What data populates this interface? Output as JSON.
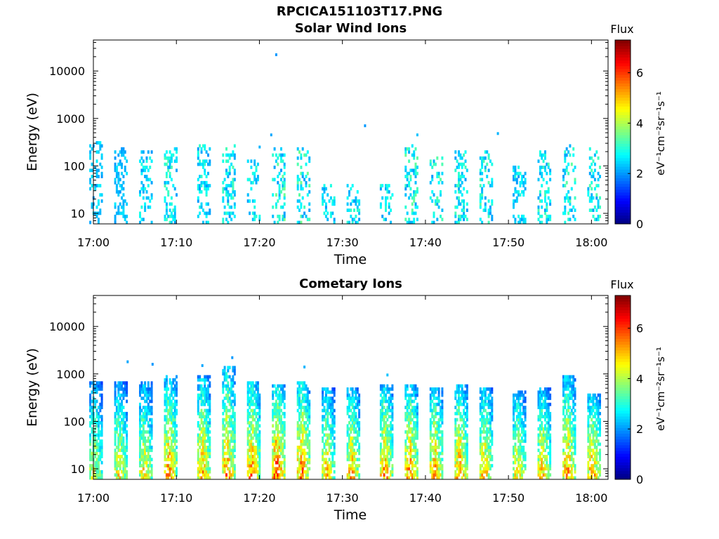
{
  "figure_title": "RPCICA151103T17.PNG",
  "chart_data": [
    {
      "type": "heatmap",
      "title": "Solar Wind Ions",
      "xlabel": "Time",
      "ylabel": "Energy (eV)",
      "xlim": [
        "17:00",
        "18:02"
      ],
      "ylim": [
        6,
        45000
      ],
      "yscale": "log",
      "x_ticks": [
        "17:00",
        "17:10",
        "17:20",
        "17:30",
        "17:40",
        "17:50",
        "18:00"
      ],
      "y_ticks": [
        "10",
        "100",
        "1000",
        "10000"
      ],
      "colorbar": {
        "title": "Flux",
        "label": "eV⁻¹cm⁻²sr⁻¹s⁻¹",
        "range": [
          0,
          7.3
        ],
        "ticks": [
          "0",
          "2",
          "4",
          "6"
        ]
      },
      "bursts": [
        {
          "t": "17:00",
          "emax": 350,
          "peak": 2.7
        },
        {
          "t": "17:03",
          "emax": 250,
          "peak": 2.6
        },
        {
          "t": "17:06",
          "emax": 220,
          "peak": 3.0
        },
        {
          "t": "17:09",
          "emax": 250,
          "peak": 3.3
        },
        {
          "t": "17:13",
          "emax": 300,
          "peak": 3.2
        },
        {
          "t": "17:16",
          "emax": 300,
          "peak": 3.3
        },
        {
          "t": "17:19",
          "emax": 150,
          "peak": 3.1
        },
        {
          "t": "17:22",
          "emax": 230,
          "peak": 3.6
        },
        {
          "t": "17:25",
          "emax": 250,
          "peak": 3.6
        },
        {
          "t": "17:28",
          "emax": 40,
          "peak": 3.0
        },
        {
          "t": "17:31",
          "emax": 40,
          "peak": 3.1
        },
        {
          "t": "17:35",
          "emax": 40,
          "peak": 3.2
        },
        {
          "t": "17:38",
          "emax": 300,
          "peak": 3.5
        },
        {
          "t": "17:41",
          "emax": 150,
          "peak": 3.4
        },
        {
          "t": "17:44",
          "emax": 200,
          "peak": 3.3
        },
        {
          "t": "17:47",
          "emax": 200,
          "peak": 3.4
        },
        {
          "t": "17:51",
          "emax": 100,
          "peak": 3.0
        },
        {
          "t": "17:54",
          "emax": 200,
          "peak": 3.3
        },
        {
          "t": "17:57",
          "emax": 300,
          "peak": 3.5
        },
        {
          "t": "18:00",
          "emax": 250,
          "peak": 3.4
        }
      ],
      "isolated_points": [
        {
          "t": "17:21.9",
          "e": 22000,
          "v": 2.0
        },
        {
          "t": "17:32.6",
          "e": 700,
          "v": 2.0
        },
        {
          "t": "17:48.6",
          "e": 480,
          "v": 2.2
        },
        {
          "t": "17:38.9",
          "e": 450,
          "v": 2.3
        },
        {
          "t": "17:21.3",
          "e": 450,
          "v": 2.1
        },
        {
          "t": "17:19.9",
          "e": 250,
          "v": 2.2
        }
      ]
    },
    {
      "type": "heatmap",
      "title": "Cometary Ions",
      "xlabel": "Time",
      "ylabel": "Energy (eV)",
      "xlim": [
        "17:00",
        "18:02"
      ],
      "ylim": [
        6,
        45000
      ],
      "yscale": "log",
      "x_ticks": [
        "17:00",
        "17:10",
        "17:20",
        "17:30",
        "17:40",
        "17:50",
        "18:00"
      ],
      "y_ticks": [
        "10",
        "100",
        "1000",
        "10000"
      ],
      "colorbar": {
        "title": "Flux",
        "label": "eV⁻¹cm⁻²sr⁻¹s⁻¹",
        "range": [
          0,
          7.3
        ],
        "ticks": [
          "0",
          "2",
          "4",
          "6"
        ]
      },
      "bursts": [
        {
          "t": "17:00",
          "emax": 700,
          "peak": 5.0
        },
        {
          "t": "17:03",
          "emax": 700,
          "peak": 5.2
        },
        {
          "t": "17:06",
          "emax": 650,
          "peak": 5.3
        },
        {
          "t": "17:09",
          "emax": 900,
          "peak": 6.0
        },
        {
          "t": "17:13",
          "emax": 900,
          "peak": 5.8
        },
        {
          "t": "17:16",
          "emax": 1400,
          "peak": 6.0
        },
        {
          "t": "17:19",
          "emax": 700,
          "peak": 6.1
        },
        {
          "t": "17:22",
          "emax": 600,
          "peak": 6.6
        },
        {
          "t": "17:25",
          "emax": 700,
          "peak": 6.3
        },
        {
          "t": "17:28",
          "emax": 500,
          "peak": 5.5
        },
        {
          "t": "17:31",
          "emax": 550,
          "peak": 5.7
        },
        {
          "t": "17:35",
          "emax": 600,
          "peak": 6.0
        },
        {
          "t": "17:38",
          "emax": 600,
          "peak": 6.1
        },
        {
          "t": "17:41",
          "emax": 500,
          "peak": 6.0
        },
        {
          "t": "17:44",
          "emax": 600,
          "peak": 6.0
        },
        {
          "t": "17:47",
          "emax": 550,
          "peak": 5.7
        },
        {
          "t": "17:51",
          "emax": 450,
          "peak": 5.4
        },
        {
          "t": "17:54",
          "emax": 500,
          "peak": 5.6
        },
        {
          "t": "17:57",
          "emax": 900,
          "peak": 6.0
        },
        {
          "t": "18:00",
          "emax": 400,
          "peak": 5.9
        }
      ],
      "isolated_points": [
        {
          "t": "17:04.0",
          "e": 1800,
          "v": 2.1
        },
        {
          "t": "17:07.0",
          "e": 1600,
          "v": 2.0
        },
        {
          "t": "17:13.0",
          "e": 1500,
          "v": 2.1
        },
        {
          "t": "17:16.6",
          "e": 2200,
          "v": 2.0
        },
        {
          "t": "17:25.3",
          "e": 1400,
          "v": 2.2
        },
        {
          "t": "17:35.3",
          "e": 950,
          "v": 2.3
        }
      ]
    }
  ]
}
